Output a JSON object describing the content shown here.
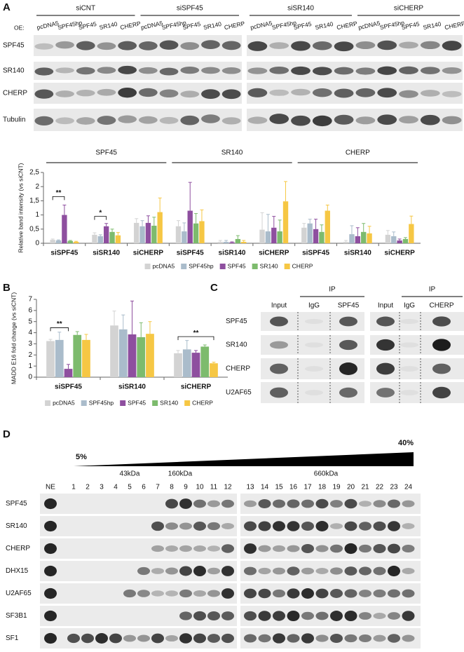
{
  "panel_labels": [
    "A",
    "B",
    "C",
    "D"
  ],
  "panel_a": {
    "oe_label": "OE:",
    "conditions": [
      "siCNT",
      "siSPF45",
      "siSR140",
      "siCHERP"
    ],
    "lanes": [
      "pcDNA5",
      "SPF45hp",
      "SPF45",
      "SR140",
      "CHERP"
    ],
    "rows": [
      "SPF45",
      "SR140",
      "CHERP",
      "Tubulin"
    ]
  },
  "chart_data": [
    {
      "type": "bar",
      "ylabel": "Relative band intensity (vs siCNT)",
      "groups": [
        "SPF45",
        "SR140",
        "CHERP"
      ],
      "categories": [
        "siSPF45",
        "siSR140",
        "siCHERP",
        "siSPF45",
        "siSR140",
        "siCHERP",
        "siSPF45",
        "siSR140",
        "siCHERP"
      ],
      "series": [
        {
          "name": "pcDNA5",
          "color": "#d3d3d3",
          "values": [
            0.12,
            0.3,
            0.72,
            0.6,
            0.05,
            0.48,
            0.55,
            0.05,
            0.3
          ],
          "errors": [
            0.03,
            0.07,
            0.15,
            0.2,
            0.05,
            0.6,
            0.15,
            0.05,
            0.15
          ]
        },
        {
          "name": "SPF45hp",
          "color": "#aabccb",
          "values": [
            0.1,
            0.25,
            0.6,
            0.42,
            0.05,
            0.42,
            0.7,
            0.32,
            0.25
          ],
          "errors": [
            0.02,
            0.05,
            0.2,
            0.3,
            0.05,
            0.6,
            0.15,
            0.3,
            0.15
          ]
        },
        {
          "name": "SPF45",
          "color": "#8e4f9f",
          "values": [
            1.0,
            0.6,
            0.72,
            1.15,
            0.03,
            0.55,
            0.5,
            0.25,
            0.1
          ],
          "errors": [
            0.35,
            0.1,
            0.25,
            1.0,
            0.02,
            0.4,
            0.35,
            0.3,
            0.05
          ]
        },
        {
          "name": "SR140",
          "color": "#7dbb6d",
          "values": [
            0.08,
            0.4,
            0.62,
            0.7,
            0.15,
            0.42,
            0.4,
            0.4,
            0.15
          ],
          "errors": [
            0.02,
            0.1,
            0.3,
            0.35,
            0.12,
            0.4,
            0.25,
            0.3,
            0.05
          ]
        },
        {
          "name": "CHERP",
          "color": "#f6c744",
          "values": [
            0.05,
            0.28,
            1.1,
            0.78,
            0.05,
            1.48,
            1.15,
            0.35,
            0.68
          ],
          "errors": [
            0.02,
            0.1,
            0.5,
            0.4,
            0.05,
            0.7,
            0.2,
            0.25,
            0.28
          ]
        }
      ],
      "ylim": [
        0,
        2.5
      ],
      "yticks": [
        0,
        {
          "value": 0.5,
          "label": "0,5"
        },
        1,
        {
          "value": 1.5,
          "label": "1,5"
        },
        2,
        {
          "value": 2.5,
          "label": "2,5"
        }
      ],
      "annotations": [
        "**",
        "*"
      ],
      "legend": "bottom"
    },
    {
      "type": "bar",
      "ylabel": "MADD E16 fold change (vs siCNT)",
      "categories": [
        "siSPF45",
        "siSR140",
        "siCHERP"
      ],
      "series": [
        {
          "name": "pcDNA5",
          "color": "#d3d3d3",
          "values": [
            3.25,
            4.65,
            2.15
          ],
          "errors": [
            0.15,
            1.3,
            0.25
          ]
        },
        {
          "name": "SPF45hp",
          "color": "#aabccb",
          "values": [
            3.35,
            4.3,
            2.5
          ],
          "errors": [
            0.7,
            1.3,
            0.8
          ]
        },
        {
          "name": "SPF45",
          "color": "#8e4f9f",
          "values": [
            0.75,
            3.85,
            2.2
          ],
          "errors": [
            0.4,
            3.0,
            0.2
          ]
        },
        {
          "name": "SR140",
          "color": "#7dbb6d",
          "values": [
            3.8,
            3.6,
            2.75
          ],
          "errors": [
            0.3,
            1.3,
            0.15
          ]
        },
        {
          "name": "CHERP",
          "color": "#f6c744",
          "values": [
            3.35,
            3.9,
            1.25
          ],
          "errors": [
            0.5,
            1.1,
            0.1
          ]
        }
      ],
      "ylim": [
        0,
        7
      ],
      "yticks": [
        0,
        1,
        2,
        3,
        4,
        5,
        6,
        7
      ],
      "annotations": [
        "**",
        "**"
      ],
      "legend": "bottom"
    }
  ],
  "panel_c": {
    "ip_label": "IP",
    "columns_left": [
      "Input",
      "IgG",
      "SPF45"
    ],
    "columns_right": [
      "Input",
      "IgG",
      "CHERP"
    ],
    "rows": [
      "SPF45",
      "SR140",
      "CHERP",
      "U2AF65"
    ]
  },
  "panel_d": {
    "gradient_start": "5%",
    "gradient_end": "40%",
    "markers": [
      "43kDa",
      "160kDa",
      "660kDa"
    ],
    "lanes": [
      "NE",
      "1",
      "2",
      "3",
      "4",
      "5",
      "6",
      "7",
      "8",
      "9",
      "10",
      "11",
      "12",
      "13",
      "14",
      "15",
      "16",
      "17",
      "18",
      "19",
      "20",
      "21",
      "22",
      "23",
      "24"
    ],
    "rows": [
      "SPF45",
      "SR140",
      "CHERP",
      "DHX15",
      "U2AF65",
      "SF3B1",
      "SF1"
    ]
  }
}
